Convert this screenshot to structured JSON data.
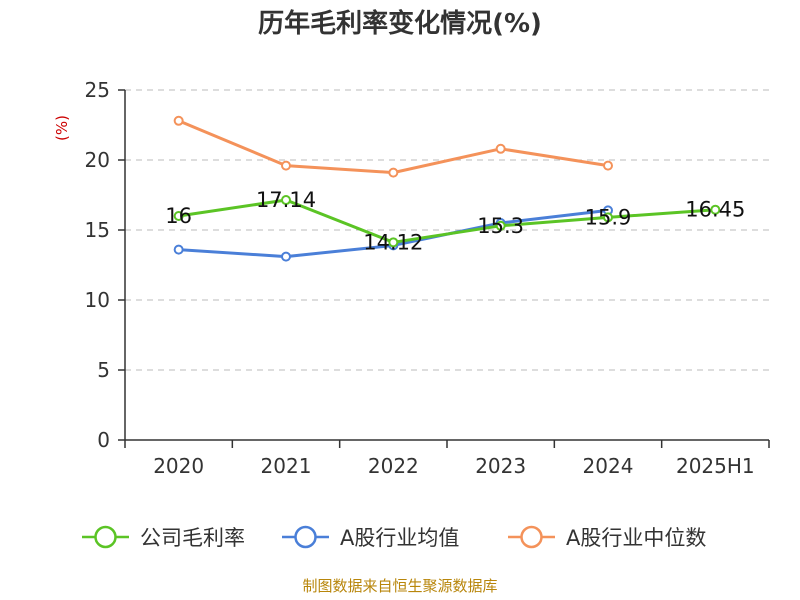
{
  "chart_data": {
    "type": "line",
    "title": "历年毛利率变化情况(%)",
    "unit_label": "(%)",
    "categories": [
      "2020",
      "2021",
      "2022",
      "2023",
      "2024",
      "2025H1"
    ],
    "ylim": [
      0,
      25
    ],
    "yticks": [
      "0",
      "5",
      "10",
      "15",
      "20",
      "25"
    ],
    "grid": true,
    "legend_position": "bottom",
    "series": [
      {
        "name": "公司毛利率",
        "color": "#5bc425",
        "values": [
          16,
          17.14,
          14.12,
          15.3,
          15.9,
          16.45
        ],
        "labels": [
          "16",
          "17.14",
          "14.12",
          "15.3",
          "15.9",
          "16.45"
        ]
      },
      {
        "name": "A股行业均值",
        "color": "#4a7fd8",
        "values": [
          13.6,
          13.1,
          13.9,
          15.5,
          16.4,
          null
        ],
        "labels": []
      },
      {
        "name": "A股行业中位数",
        "color": "#f4925a",
        "values": [
          22.8,
          19.6,
          19.1,
          20.8,
          19.6,
          null
        ],
        "labels": []
      }
    ]
  },
  "source": "制图数据来自恒生聚源数据库"
}
